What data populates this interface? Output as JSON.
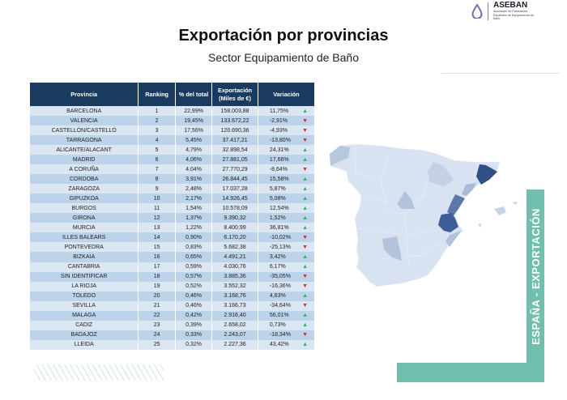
{
  "logo": {
    "name": "ASEBAN",
    "subtitle": "Asociación de Fabricantes Españoles de Equipamiento de Baño"
  },
  "title": "Exportación por provincias",
  "subtitle": "Sector Equipamiento de Baño",
  "table": {
    "headers": [
      "Provincia",
      "Ranking",
      "% del total",
      "Exportación (Miles de €)",
      "Variación"
    ],
    "rows": [
      [
        "BARCELONA",
        "1",
        "22,99%",
        "158.003,88",
        "11,75%",
        "up"
      ],
      [
        "VALENCIA",
        "2",
        "19,45%",
        "133.672,22",
        "-2,91%",
        "down"
      ],
      [
        "CASTELLÓN/CASTELLÓ",
        "3",
        "17,56%",
        "120.690,36",
        "-4,93%",
        "down"
      ],
      [
        "TARRAGONA",
        "4",
        "5,45%",
        "37.417,21",
        "-13,80%",
        "down"
      ],
      [
        "ALICANTE/ALACANT",
        "5",
        "4,79%",
        "32.898,54",
        "24,31%",
        "up"
      ],
      [
        "MADRID",
        "6",
        "4,06%",
        "27.881,05",
        "17,66%",
        "up"
      ],
      [
        "A CORUÑA",
        "7",
        "4,04%",
        "27.770,29",
        "-8,64%",
        "down"
      ],
      [
        "CORDOBA",
        "8",
        "3,91%",
        "26.844,45",
        "15,58%",
        "up"
      ],
      [
        "ZARAGOZA",
        "9",
        "2,48%",
        "17.037,28",
        "5,87%",
        "up"
      ],
      [
        "GIPUZKOA",
        "10",
        "2,17%",
        "14.926,45",
        "5,08%",
        "up"
      ],
      [
        "BURGOS",
        "11",
        "1,54%",
        "10.578,09",
        "12,54%",
        "up"
      ],
      [
        "GIRONA",
        "12",
        "1,37%",
        "9.390,32",
        "1,52%",
        "up"
      ],
      [
        "MURCIA",
        "13",
        "1,22%",
        "8.400,99",
        "36,81%",
        "up"
      ],
      [
        "ILLES BALEARS",
        "14",
        "0,90%",
        "6.170,20",
        "-10,02%",
        "down"
      ],
      [
        "PONTEVEDRA",
        "15",
        "0,83%",
        "5.682,38",
        "-25,13%",
        "down"
      ],
      [
        "BIZKAIA",
        "16",
        "0,65%",
        "4.491,21",
        "3,42%",
        "up"
      ],
      [
        "CANTABRIA",
        "17",
        "0,59%",
        "4.030,76",
        "6,17%",
        "up"
      ],
      [
        "SIN IDENTIFICAR",
        "18",
        "0,57%",
        "3.885,36",
        "-35,05%",
        "down"
      ],
      [
        "LA RIOJA",
        "19",
        "0,52%",
        "3.552,32",
        "-16,36%",
        "down"
      ],
      [
        "TOLEDO",
        "20",
        "0,46%",
        "3.168,76",
        "4,83%",
        "up"
      ],
      [
        "SEVILLA",
        "21",
        "0,46%",
        "3.166,73",
        "-34,64%",
        "down"
      ],
      [
        "MALAGA",
        "22",
        "0,42%",
        "2.916,40",
        "56,01%",
        "up"
      ],
      [
        "CADIZ",
        "23",
        "0,39%",
        "2.658,02",
        "0,73%",
        "up"
      ],
      [
        "BADAJOZ",
        "24",
        "0,33%",
        "2.243,07",
        "-18,34%",
        "down"
      ],
      [
        "LLEIDA",
        "25",
        "0,32%",
        "2.227,36",
        "43,42%",
        "up"
      ]
    ]
  },
  "side_label": "ESPAÑA - EXPORTACIÓN",
  "colors": {
    "header": "#193b5f",
    "teal": "#72bfae",
    "up": "#2eaf5b",
    "down": "#d42a2a",
    "map_base": "#d8e2f0",
    "map_dark": "#2f4f85"
  }
}
